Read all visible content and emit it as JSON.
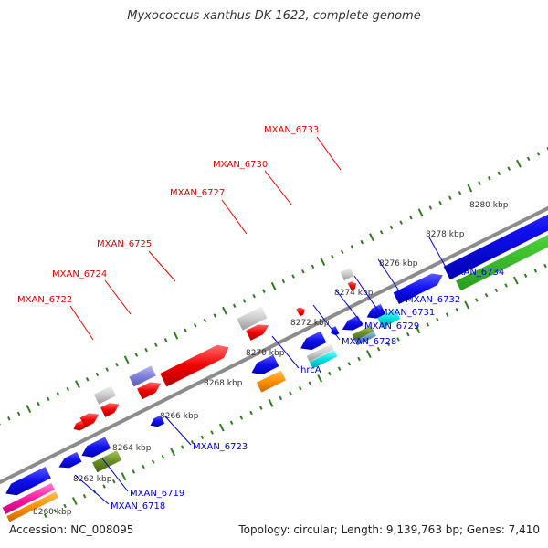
{
  "title": "Myxococcus xanthus DK 1622, complete genome",
  "footer": {
    "accession": "Accession: NC_008095",
    "summary": "Topology: circular; Length: 9,139,763 bp; Genes: 7,410"
  },
  "colors": {
    "axis": "#8c8c8c",
    "tick_dots": "#2e7d1e",
    "label_red": "#e00000",
    "label_blue": "#0000cc",
    "tick_label": "#333333"
  },
  "scale_ticks": [
    {
      "label": "8260 kbp"
    },
    {
      "label": "8262 kbp"
    },
    {
      "label": "8264 kbp"
    },
    {
      "label": "8266 kbp"
    },
    {
      "label": "8268 kbp"
    },
    {
      "label": "8270 kbp"
    },
    {
      "label": "8272 kbp"
    },
    {
      "label": "8274 kbp"
    },
    {
      "label": "8276 kbp"
    },
    {
      "label": "8278 kbp"
    },
    {
      "label": "8280 kbp"
    }
  ],
  "top_labels": [
    {
      "name": "MXAN_6722"
    },
    {
      "name": "MXAN_6724"
    },
    {
      "name": "MXAN_6725"
    },
    {
      "name": "MXAN_6727"
    },
    {
      "name": "MXAN_6730"
    },
    {
      "name": "MXAN_6733"
    }
  ],
  "bottom_labels": [
    {
      "name": "MXAN_6718"
    },
    {
      "name": "MXAN_6719"
    },
    {
      "name": "MXAN_6723"
    },
    {
      "name": "hrcA"
    },
    {
      "name": "MXAN_6728"
    },
    {
      "name": "MXAN_6729"
    },
    {
      "name": "MXAN_6731"
    },
    {
      "name": "MXAN_6732"
    },
    {
      "name": "MXAN_6734"
    }
  ]
}
